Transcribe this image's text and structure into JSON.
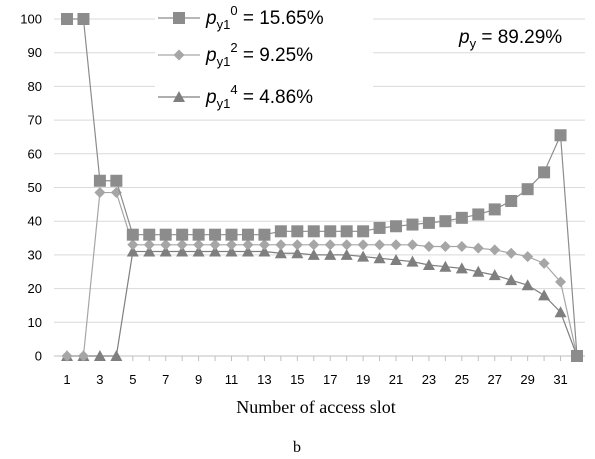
{
  "chart_data": {
    "type": "line",
    "title": "",
    "xlabel": "Number of access slot",
    "ylabel": "",
    "subfigure_label": "b",
    "ylim": [
      0,
      100
    ],
    "yticks": [
      "0",
      "10",
      "20",
      "30",
      "40",
      "50",
      "60",
      "70",
      "80",
      "90",
      "100"
    ],
    "xlim": [
      1,
      32
    ],
    "xticks": [
      "1",
      "3",
      "5",
      "7",
      "9",
      "11",
      "13",
      "15",
      "17",
      "19",
      "21",
      "23",
      "25",
      "27",
      "29",
      "31"
    ],
    "grid": "horizontal",
    "legend_position": "top-center",
    "x": [
      1,
      2,
      3,
      4,
      5,
      6,
      7,
      8,
      9,
      10,
      11,
      12,
      13,
      14,
      15,
      16,
      17,
      18,
      19,
      20,
      21,
      22,
      23,
      24,
      25,
      26,
      27,
      28,
      29,
      30,
      31,
      32
    ],
    "series": [
      {
        "legend": {
          "base": "p",
          "sub": "y1",
          "sup": "0",
          "value": " = 15.65%"
        },
        "marker": "square",
        "color": "#8c8c8c",
        "values": [
          100,
          100,
          52,
          52,
          36,
          36,
          36,
          36,
          36,
          36,
          36,
          36,
          36,
          37,
          37,
          37,
          37,
          37,
          37,
          38,
          38.5,
          39,
          39.5,
          40,
          41,
          42,
          43.5,
          46,
          49.5,
          54.5,
          65.5,
          0
        ]
      },
      {
        "legend": {
          "base": "p",
          "sub": "y1",
          "sup": "2",
          "value": " = 9.25%"
        },
        "marker": "diamond",
        "color": "#a6a6a6",
        "values": [
          0,
          0,
          48.5,
          48.5,
          33,
          33,
          33,
          33,
          33,
          33,
          33,
          33,
          33,
          33,
          33,
          33,
          33,
          33,
          33,
          33,
          33,
          33,
          32.5,
          32.5,
          32.5,
          32,
          31.5,
          30.5,
          29.5,
          27.5,
          22,
          0
        ]
      },
      {
        "legend": {
          "base": "p",
          "sub": "y1",
          "sup": "4",
          "value": " = 4.86%"
        },
        "marker": "triangle",
        "color": "#7f7f7f",
        "values": [
          0,
          0,
          0,
          0,
          31,
          31,
          31,
          31,
          31,
          31,
          31,
          31,
          31,
          30.5,
          30.5,
          30,
          30,
          30,
          29.5,
          29,
          28.5,
          28,
          27,
          26.5,
          26,
          25,
          24,
          22.5,
          21,
          18,
          13,
          0
        ]
      }
    ],
    "annotation": {
      "base": "p",
      "sub": "y",
      "value": " = 89.29%"
    }
  }
}
